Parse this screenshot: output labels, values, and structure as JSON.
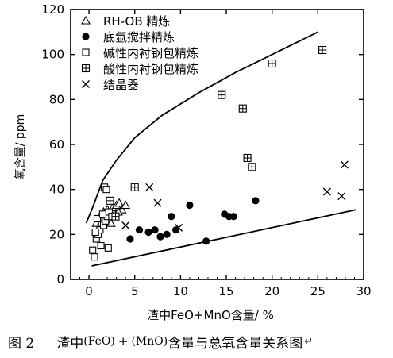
{
  "chart_data": {
    "type": "scatter",
    "xlabel": "渣中FeO+MnO含量/ %",
    "ylabel": "氧含量/ ppm",
    "xlim": [
      -2,
      30
    ],
    "ylim": [
      0,
      120
    ],
    "xticks": [
      0,
      5,
      10,
      15,
      20,
      25,
      30
    ],
    "yticks": [
      0,
      20,
      40,
      60,
      80,
      100,
      120
    ],
    "legend_position": "top-left",
    "series": [
      {
        "name": "RH-OB 精炼",
        "marker": "triangle",
        "points": [
          [
            0.8,
            25
          ],
          [
            1.2,
            28
          ],
          [
            1.6,
            30
          ],
          [
            2.0,
            31
          ],
          [
            2.3,
            29
          ],
          [
            2.6,
            32
          ],
          [
            3.0,
            33
          ],
          [
            3.3,
            34
          ],
          [
            3.6,
            31
          ],
          [
            4.0,
            33
          ],
          [
            2.0,
            27
          ],
          [
            2.8,
            29
          ],
          [
            1.4,
            26
          ],
          [
            3.2,
            30
          ],
          [
            2.4,
            25
          ]
        ]
      },
      {
        "name": "底氩搅拌精炼",
        "marker": "filled-circle",
        "points": [
          [
            4.5,
            18
          ],
          [
            5.5,
            22
          ],
          [
            6.5,
            21
          ],
          [
            7.2,
            22
          ],
          [
            7.8,
            19
          ],
          [
            8.5,
            20
          ],
          [
            9.0,
            28
          ],
          [
            9.5,
            22
          ],
          [
            11.0,
            33
          ],
          [
            12.8,
            17
          ],
          [
            14.8,
            29
          ],
          [
            15.3,
            28
          ],
          [
            15.8,
            28
          ],
          [
            18.2,
            35
          ]
        ]
      },
      {
        "name": "碱性内衬钢包精炼",
        "marker": "open-square",
        "points": [
          [
            0.4,
            13
          ],
          [
            0.6,
            10
          ],
          [
            0.8,
            18
          ],
          [
            1.0,
            20
          ],
          [
            1.2,
            22
          ],
          [
            1.4,
            25
          ],
          [
            1.6,
            24
          ],
          [
            1.8,
            26
          ],
          [
            2.0,
            28
          ],
          [
            2.2,
            30
          ],
          [
            2.5,
            28
          ],
          [
            0.9,
            27
          ],
          [
            1.5,
            29
          ],
          [
            1.7,
            41
          ],
          [
            1.9,
            40
          ],
          [
            0.7,
            21
          ],
          [
            1.3,
            15
          ],
          [
            2.1,
            14
          ]
        ]
      },
      {
        "name": "酸性内衬钢包精炼",
        "marker": "crossed-square",
        "points": [
          [
            5.0,
            41
          ],
          [
            14.5,
            82
          ],
          [
            16.8,
            76
          ],
          [
            17.3,
            54
          ],
          [
            17.8,
            50
          ],
          [
            20.0,
            96
          ],
          [
            25.5,
            102
          ],
          [
            2.3,
            35
          ],
          [
            2.9,
            28
          ]
        ]
      },
      {
        "name": "结晶器",
        "marker": "x",
        "points": [
          [
            4.0,
            24
          ],
          [
            6.6,
            41
          ],
          [
            7.5,
            34
          ],
          [
            9.8,
            23
          ],
          [
            26.0,
            39
          ],
          [
            27.6,
            37
          ],
          [
            27.9,
            51
          ]
        ]
      }
    ],
    "upper_curve": [
      [
        -0.3,
        25
      ],
      [
        0.5,
        33
      ],
      [
        1.5,
        44
      ],
      [
        3,
        53
      ],
      [
        5,
        63
      ],
      [
        8,
        73
      ],
      [
        12,
        83
      ],
      [
        16,
        92
      ],
      [
        20,
        100
      ],
      [
        25,
        110
      ]
    ],
    "lower_line": [
      [
        0.3,
        6
      ],
      [
        29.2,
        31
      ]
    ]
  },
  "caption": {
    "figure_label": "图 2",
    "text_1": "渣中",
    "paren_1": "(FeO)",
    "plus": "+",
    "paren_2": "(MnO)",
    "text_2": "含量与总氧含量关系图",
    "end_mark": "↵"
  }
}
